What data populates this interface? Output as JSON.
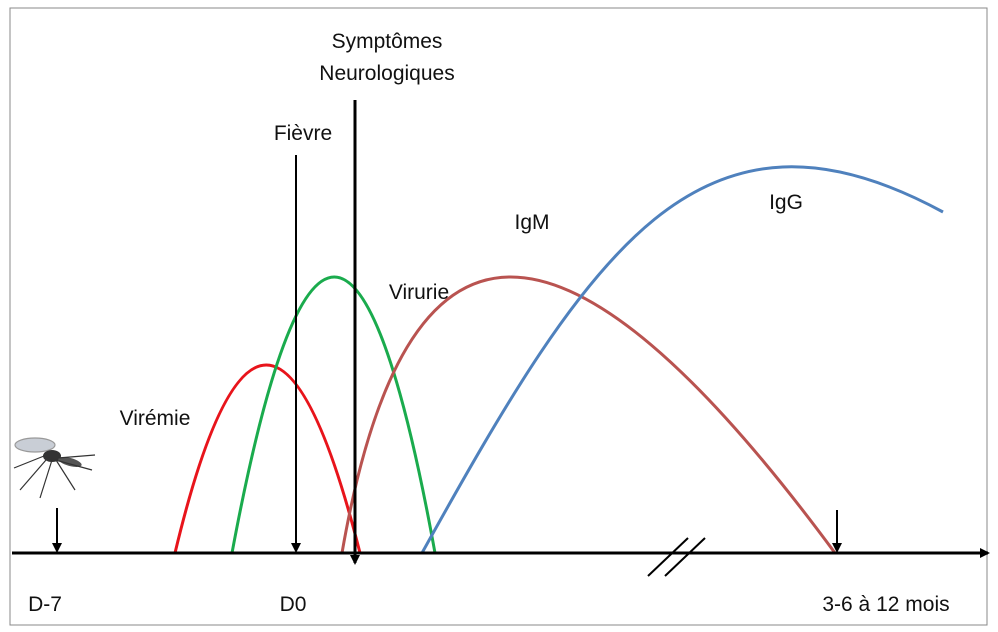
{
  "events": {
    "symptoms": [
      "Symptômes",
      "Neurologiques"
    ],
    "fever": "Fièvre"
  },
  "curves": {
    "viremia": "Virémie",
    "viruria": "Virurie",
    "igm": "IgM",
    "igg": "IgG"
  },
  "timeline": {
    "start": "D-7",
    "day0": "D0",
    "end": "3-6 à 12 mois"
  }
}
